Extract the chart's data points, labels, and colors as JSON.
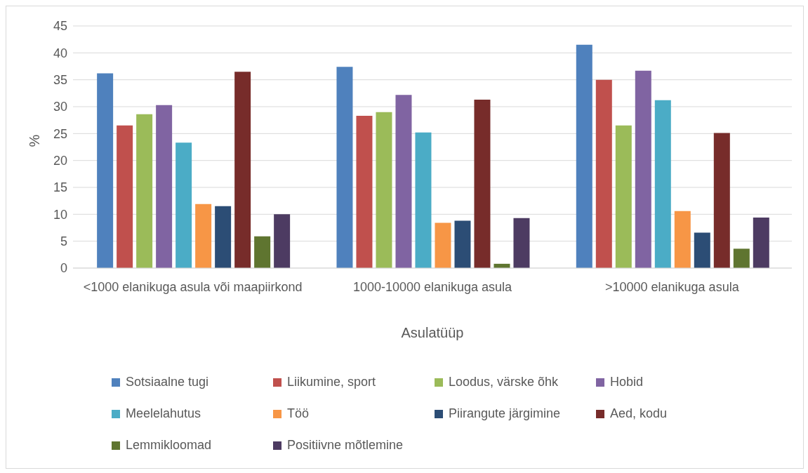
{
  "chart_data": {
    "type": "bar",
    "xlabel": "Asulatüüp",
    "ylabel": "%",
    "categories": [
      "<1000 elanikuga asula või maapiirkond",
      "1000-10000 elanikuga asula",
      ">10000 elanikuga asula"
    ],
    "series": [
      {
        "name": "Sotsiaalne tugi",
        "color": "#4f81bd",
        "values": [
          36.2,
          37.4,
          41.5
        ]
      },
      {
        "name": "Liikumine, sport",
        "color": "#c0504d",
        "values": [
          26.5,
          28.3,
          35.0
        ]
      },
      {
        "name": "Loodus, värske õhk",
        "color": "#9bbb59",
        "values": [
          28.6,
          29.0,
          26.5
        ]
      },
      {
        "name": "Hobid",
        "color": "#8064a2",
        "values": [
          30.3,
          32.2,
          36.7
        ]
      },
      {
        "name": "Meelelahutus",
        "color": "#4bacc6",
        "values": [
          23.3,
          25.2,
          31.2
        ]
      },
      {
        "name": "Töö",
        "color": "#f79646",
        "values": [
          11.9,
          8.4,
          10.6
        ]
      },
      {
        "name": "Piirangute järgimine",
        "color": "#2c4d75",
        "values": [
          11.5,
          8.8,
          6.6
        ]
      },
      {
        "name": "Aed, kodu",
        "color": "#772c2a",
        "values": [
          36.5,
          31.3,
          25.1
        ]
      },
      {
        "name": "Lemmikloomad",
        "color": "#5f7530",
        "values": [
          5.9,
          0.8,
          3.6
        ]
      },
      {
        "name": "Positiivne mõtlemine",
        "color": "#4d3b62",
        "values": [
          10.0,
          9.3,
          9.4
        ]
      }
    ],
    "ylim": [
      0,
      45
    ],
    "yticks": [
      0,
      5,
      10,
      15,
      20,
      25,
      30,
      35,
      40,
      45
    ],
    "grid": "y",
    "legend": "bottom"
  }
}
